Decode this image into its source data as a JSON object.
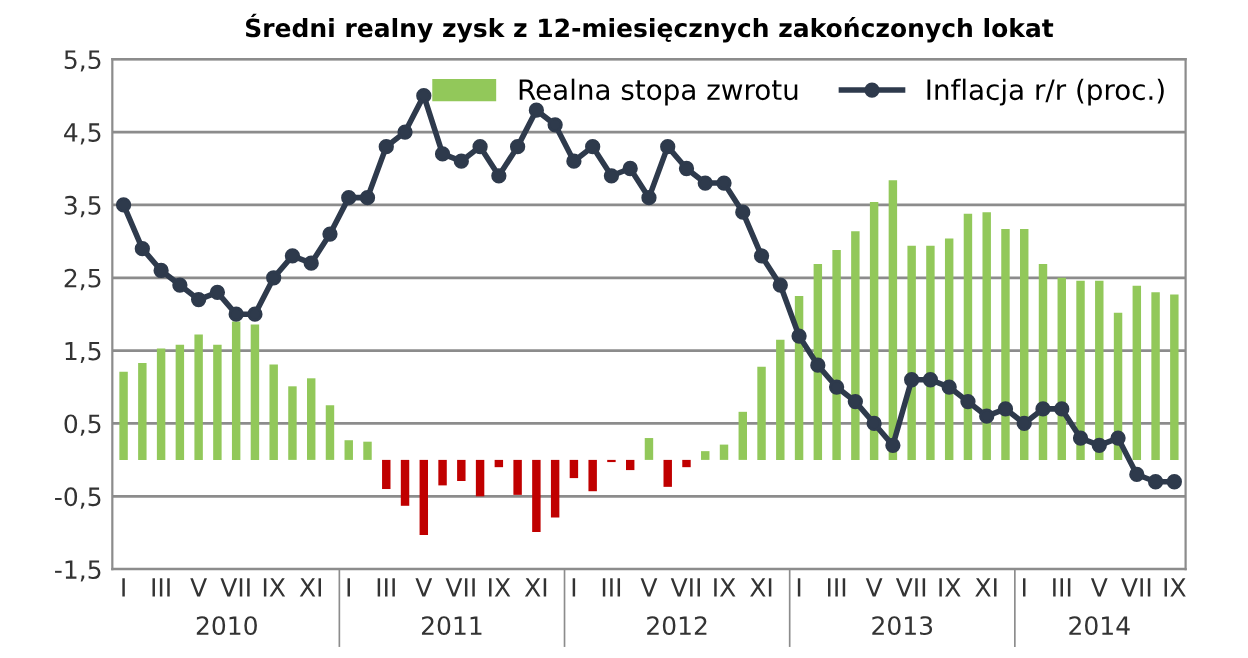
{
  "chart_data": {
    "type": "bar",
    "title": "Średni realny zysk z 12-miesięcznych zakończonych lokat",
    "categories": [
      "I",
      null,
      "III",
      null,
      "V",
      null,
      "VII",
      null,
      "IX",
      null,
      "XI",
      null,
      "I",
      null,
      "III",
      null,
      "V",
      null,
      "VII",
      null,
      "IX",
      null,
      "XI",
      null,
      "I",
      null,
      "III",
      null,
      "V",
      null,
      "VII",
      null,
      "IX",
      null,
      "XI",
      null,
      "I",
      null,
      "III",
      null,
      "V",
      null,
      "VII",
      null,
      "IX",
      null,
      "XI",
      null,
      "I",
      null,
      "III",
      null,
      "V",
      null,
      "VII",
      null,
      "IX"
    ],
    "series": [
      {
        "name": "Realna stopa zwrotu",
        "color": "#92c85a",
        "colors": [
          "#92c85a",
          "#92c85a",
          "#92c85a",
          "#92c85a",
          "#92c85a",
          "#92c85a",
          "#92c85a",
          "#92c85a",
          "#92c85a",
          "#92c85a",
          "#92c85a",
          "#92c85a",
          "#92c85a",
          "#92c85a",
          "#c00000",
          "#c00000",
          "#c00000",
          "#c00000",
          "#c00000",
          "#c00000",
          "#c00000",
          "#c00000",
          "#c00000",
          "#c00000",
          "#c00000",
          "#c00000",
          "#c00000",
          "#c00000",
          "#92c85a",
          "#c00000",
          "#c00000",
          "#92c85a",
          "#92c85a",
          "#92c85a",
          "#92c85a",
          "#92c85a",
          "#92c85a",
          "#92c85a",
          "#92c85a",
          "#92c85a",
          "#92c85a",
          "#92c85a",
          "#92c85a",
          "#92c85a",
          "#92c85a",
          "#92c85a",
          "#92c85a",
          "#92c85a",
          "#92c85a",
          "#92c85a",
          "#92c85a",
          "#92c85a",
          "#92c85a",
          "#92c85a",
          "#92c85a",
          "#92c85a",
          "#92c85a"
        ],
        "values": [
          1.21,
          1.33,
          1.53,
          1.58,
          1.72,
          1.58,
          1.9,
          1.86,
          1.31,
          1.01,
          1.12,
          0.75,
          0.27,
          0.25,
          -0.4,
          -0.63,
          -1.03,
          -0.35,
          -0.29,
          -0.5,
          -0.1,
          -0.48,
          -0.99,
          -0.79,
          -0.25,
          -0.43,
          -0.03,
          -0.14,
          0.3,
          -0.37,
          -0.1,
          0.12,
          0.21,
          0.66,
          1.28,
          1.65,
          2.25,
          2.69,
          2.88,
          3.14,
          3.54,
          3.84,
          2.94,
          2.94,
          3.04,
          3.38,
          3.4,
          3.17,
          3.17,
          2.69,
          2.5,
          2.46,
          2.46,
          2.02,
          2.39,
          2.3,
          2.27
        ]
      },
      {
        "name": "Inflacja r/r (proc.)",
        "type": "line",
        "color": "#2e3a4c",
        "marker": "circle",
        "line_style": "solid",
        "values": [
          3.5,
          2.9,
          2.6,
          2.4,
          2.2,
          2.3,
          2.0,
          2.0,
          2.5,
          2.8,
          2.7,
          3.1,
          3.6,
          3.6,
          4.3,
          4.5,
          5.0,
          4.2,
          4.1,
          4.3,
          3.9,
          4.3,
          4.8,
          4.6,
          4.1,
          4.3,
          3.9,
          4.0,
          3.6,
          4.3,
          4.0,
          3.8,
          3.8,
          3.4,
          2.8,
          2.4,
          1.7,
          1.3,
          1.0,
          0.8,
          0.5,
          0.2,
          1.1,
          1.1,
          1.0,
          0.8,
          0.6,
          0.7,
          0.5,
          0.7,
          0.7,
          0.3,
          0.2,
          0.3,
          -0.2,
          -0.3,
          -0.3
        ]
      }
    ],
    "ylim": [
      -1.5,
      5.5
    ],
    "yticks": [
      {
        "value": -1.5,
        "label": "-1,5"
      },
      {
        "value": -0.5,
        "label": "-0,5"
      },
      {
        "value": 0.5,
        "label": "0,5"
      },
      {
        "value": 1.5,
        "label": "1,5"
      },
      {
        "value": 2.5,
        "label": "2,5"
      },
      {
        "value": 3.5,
        "label": "3,5"
      },
      {
        "value": 4.5,
        "label": "4,5"
      },
      {
        "value": 5.5,
        "label": "5,5"
      }
    ],
    "grid": "y",
    "legend": "top right",
    "annotations": [
      "2010",
      "2011",
      "2012",
      "2013",
      "2014"
    ]
  }
}
